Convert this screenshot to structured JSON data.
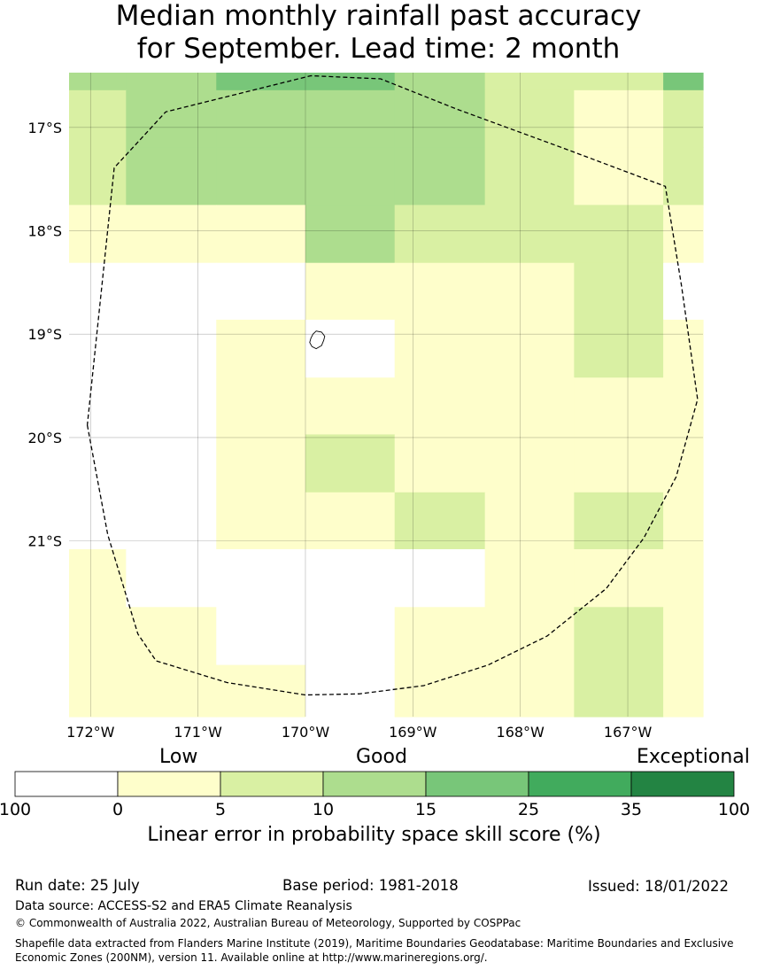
{
  "title": {
    "line1": "Median monthly rainfall past accuracy",
    "line2": "for September. Lead time: 2 month"
  },
  "map": {
    "lon_range": [
      -172.2,
      -166.3
    ],
    "lat_range": [
      -22.7,
      -16.47
    ],
    "lon_ticks": [
      {
        "value": -172,
        "label": "172°W"
      },
      {
        "value": -171,
        "label": "171°W"
      },
      {
        "value": -170,
        "label": "170°W"
      },
      {
        "value": -169,
        "label": "169°W"
      },
      {
        "value": -168,
        "label": "168°W"
      },
      {
        "value": -167,
        "label": "167°W"
      }
    ],
    "lat_ticks": [
      {
        "value": -17,
        "label": "17°S"
      },
      {
        "value": -18,
        "label": "18°S"
      },
      {
        "value": -19,
        "label": "19°S"
      },
      {
        "value": -20,
        "label": "20°S"
      },
      {
        "value": -21,
        "label": "21°S"
      }
    ],
    "grid_lines": true,
    "color_classes": [
      "#ffffff",
      "#fefecb",
      "#d9f0a3",
      "#addd8e",
      "#78c679",
      "#41ab5d",
      "#238443"
    ],
    "column_lon_edges": [
      -172.2,
      -171.67,
      -170.83,
      -170.0,
      -169.17,
      -168.33,
      -167.5,
      -166.67,
      -166.3
    ],
    "row_lat_edges": [
      -16.47,
      -16.64,
      -17.19,
      -17.75,
      -18.31,
      -18.86,
      -19.42,
      -19.97,
      -20.53,
      -21.08,
      -21.64,
      -22.2,
      -22.75
    ],
    "cells": [
      [
        3,
        3,
        4,
        4,
        3,
        2,
        2,
        4
      ],
      [
        2,
        3,
        3,
        3,
        3,
        2,
        1,
        2
      ],
      [
        2,
        3,
        3,
        3,
        3,
        2,
        1,
        2
      ],
      [
        1,
        1,
        1,
        3,
        2,
        2,
        2,
        1
      ],
      [
        0,
        0,
        0,
        1,
        1,
        1,
        2,
        0
      ],
      [
        0,
        0,
        1,
        0,
        1,
        1,
        2,
        1
      ],
      [
        0,
        0,
        1,
        1,
        1,
        1,
        1,
        1
      ],
      [
        0,
        0,
        1,
        2,
        1,
        1,
        1,
        1
      ],
      [
        0,
        0,
        1,
        1,
        2,
        1,
        2,
        1
      ],
      [
        1,
        0,
        0,
        0,
        0,
        1,
        1,
        1
      ],
      [
        1,
        1,
        0,
        0,
        1,
        1,
        2,
        1
      ],
      [
        1,
        1,
        1,
        0,
        1,
        1,
        2,
        1
      ],
      [
        3,
        3,
        1,
        1,
        1,
        1,
        0,
        1
      ]
    ],
    "eez_boundary": [
      [
        -172.03,
        -19.88
      ],
      [
        -171.84,
        -20.94
      ],
      [
        -171.56,
        -21.9
      ],
      [
        -171.39,
        -22.16
      ],
      [
        -170.73,
        -22.37
      ],
      [
        -170.0,
        -22.49
      ],
      [
        -169.5,
        -22.48
      ],
      [
        -168.9,
        -22.4
      ],
      [
        -168.3,
        -22.2
      ],
      [
        -167.75,
        -21.92
      ],
      [
        -167.2,
        -21.46
      ],
      [
        -166.85,
        -20.97
      ],
      [
        -166.55,
        -20.38
      ],
      [
        -166.35,
        -19.63
      ],
      [
        -166.5,
        -18.53
      ],
      [
        -166.65,
        -17.57
      ],
      [
        -167.6,
        -17.2
      ],
      [
        -168.6,
        -16.82
      ],
      [
        -169.3,
        -16.53
      ],
      [
        -169.95,
        -16.5
      ],
      [
        -171.3,
        -16.85
      ],
      [
        -171.78,
        -17.39
      ],
      [
        -172.03,
        -19.88
      ]
    ],
    "island": [
      [
        -169.9,
        -18.97
      ],
      [
        -169.85,
        -18.98
      ],
      [
        -169.82,
        -19.02
      ],
      [
        -169.83,
        -19.06
      ],
      [
        -169.85,
        -19.11
      ],
      [
        -169.9,
        -19.14
      ],
      [
        -169.94,
        -19.12
      ],
      [
        -169.96,
        -19.08
      ],
      [
        -169.95,
        -19.04
      ],
      [
        -169.93,
        -19.0
      ],
      [
        -169.9,
        -18.97
      ]
    ]
  },
  "legend": {
    "qualitative": [
      "Low",
      "Good",
      "Exceptional"
    ],
    "colors": [
      "#ffffff",
      "#fefecb",
      "#d9f0a3",
      "#addd8e",
      "#78c679",
      "#41ab5d",
      "#238443"
    ],
    "tick_labels": [
      "100",
      "0",
      "5",
      "10",
      "15",
      "25",
      "35",
      "100"
    ],
    "caption": "Linear error in probability space skill score (%)"
  },
  "footer": {
    "run_date": "Run date: 25 July",
    "base_period": "Base period: 1981-2018",
    "issued": "Issued: 18/01/2022",
    "data_source": "Data source: ACCESS-S2 and ERA5 Climate Reanalysis",
    "copyright": "© Commonwealth of Australia 2022, Australian Bureau of Meteorology, Supported by COSPPac",
    "shapefile_line1": "Shapefile data extracted from Flanders Marine Institute (2019), Maritime Boundaries Geodatabase: Maritime Boundaries and Exclusive",
    "shapefile_line2": "Economic Zones (200NM), version 11. Available online at http://www.marineregions.org/."
  }
}
